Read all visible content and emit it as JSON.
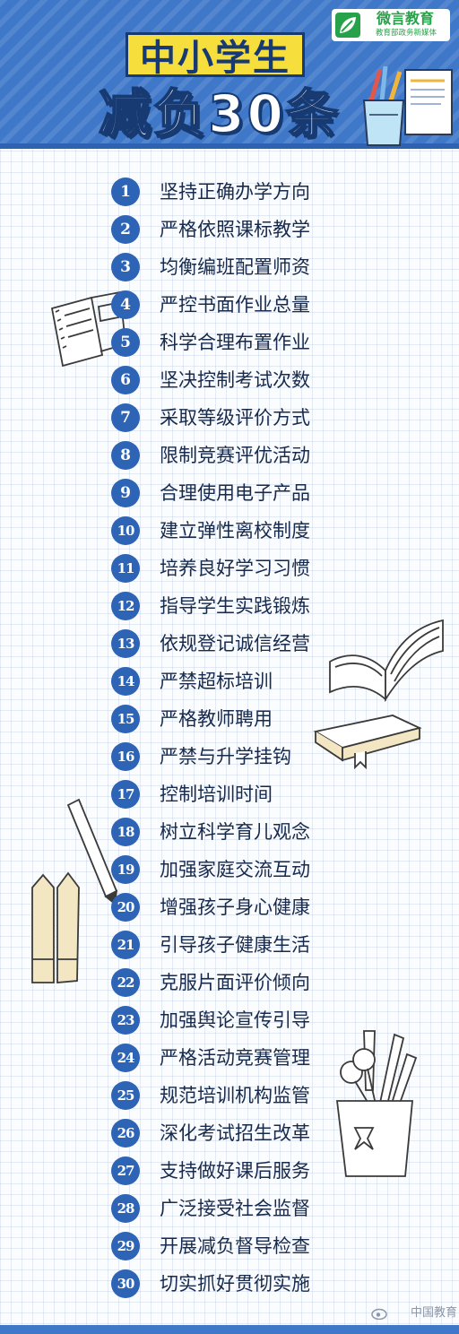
{
  "header": {
    "title_line1": "中小学生",
    "title_line2": "减负30条",
    "logo_name": "微言教育",
    "logo_subtitle": "教育部政务新媒体"
  },
  "items": [
    {
      "num": "1",
      "label": "坚持正确办学方向"
    },
    {
      "num": "2",
      "label": "严格依照课标教学"
    },
    {
      "num": "3",
      "label": "均衡编班配置师资"
    },
    {
      "num": "4",
      "label": "严控书面作业总量"
    },
    {
      "num": "5",
      "label": "科学合理布置作业"
    },
    {
      "num": "6",
      "label": "坚决控制考试次数"
    },
    {
      "num": "7",
      "label": "采取等级评价方式"
    },
    {
      "num": "8",
      "label": "限制竞赛评优活动"
    },
    {
      "num": "9",
      "label": "合理使用电子产品"
    },
    {
      "num": "10",
      "label": "建立弹性离校制度"
    },
    {
      "num": "11",
      "label": "培养良好学习习惯"
    },
    {
      "num": "12",
      "label": "指导学生实践锻炼"
    },
    {
      "num": "13",
      "label": "依规登记诚信经营"
    },
    {
      "num": "14",
      "label": "严禁超标培训"
    },
    {
      "num": "15",
      "label": "严格教师聘用"
    },
    {
      "num": "16",
      "label": "严禁与升学挂钩"
    },
    {
      "num": "17",
      "label": "控制培训时间"
    },
    {
      "num": "18",
      "label": "树立科学育儿观念"
    },
    {
      "num": "19",
      "label": "加强家庭交流互动"
    },
    {
      "num": "20",
      "label": "增强孩子身心健康"
    },
    {
      "num": "21",
      "label": "引导孩子健康生活"
    },
    {
      "num": "22",
      "label": "克服片面评价倾向"
    },
    {
      "num": "23",
      "label": "加强舆论宣传引导"
    },
    {
      "num": "24",
      "label": "严格活动竞赛管理"
    },
    {
      "num": "25",
      "label": "规范培训机构监管"
    },
    {
      "num": "26",
      "label": "深化考试招生改革"
    },
    {
      "num": "27",
      "label": "支持做好课后服务"
    },
    {
      "num": "28",
      "label": "广泛接受社会监督"
    },
    {
      "num": "29",
      "label": "开展减负督导检查"
    },
    {
      "num": "30",
      "label": "切实抓好贯彻实施"
    }
  ],
  "watermark": "中国教育",
  "colors": {
    "header_blue": "#3f78c8",
    "number_circle": "#2d64b6",
    "title_yellow": "#f6df3c",
    "title_outline": "#173a72",
    "logo_green": "#28a24a",
    "text": "#172a4c"
  },
  "icons": [
    "pencil-cup-icon",
    "notebook-icon",
    "open-book-icon",
    "closed-book-icon",
    "pencils-icon",
    "stationery-cup-icon",
    "weibo-icon"
  ]
}
